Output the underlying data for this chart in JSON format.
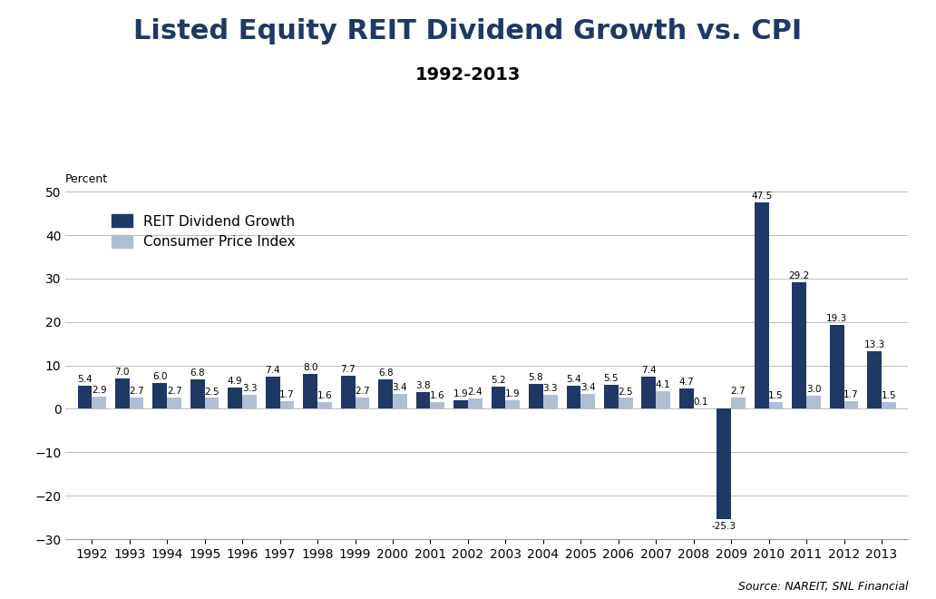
{
  "title": "Listed Equity REIT Dividend Growth vs. CPI",
  "subtitle": "1992-2013",
  "ylabel": "Percent",
  "source": "Source: NAREIT, SNL Financial",
  "ylim": [
    -30,
    50
  ],
  "yticks": [
    -30,
    -20,
    -10,
    0,
    10,
    20,
    30,
    40,
    50
  ],
  "years": [
    1992,
    1993,
    1994,
    1995,
    1996,
    1997,
    1998,
    1999,
    2000,
    2001,
    2002,
    2003,
    2004,
    2005,
    2006,
    2007,
    2008,
    2009,
    2010,
    2011,
    2012,
    2013
  ],
  "reit": [
    5.4,
    7.0,
    6.0,
    6.8,
    4.9,
    7.4,
    8.0,
    7.7,
    6.8,
    3.8,
    1.9,
    5.2,
    5.8,
    5.4,
    5.5,
    7.4,
    4.7,
    -25.3,
    47.5,
    29.2,
    19.3,
    13.3
  ],
  "cpi": [
    2.9,
    2.7,
    2.7,
    2.5,
    3.3,
    1.7,
    1.6,
    2.7,
    3.4,
    1.6,
    2.4,
    1.9,
    3.3,
    3.4,
    2.5,
    4.1,
    0.1,
    2.7,
    1.5,
    3.0,
    1.7,
    1.5
  ],
  "reit_color": "#1F3864",
  "cpi_color": "#B0BED4",
  "bar_width": 0.38,
  "title_fontsize": 22,
  "subtitle_fontsize": 14,
  "legend_fontsize": 11,
  "tick_fontsize": 10,
  "label_fontsize": 7.5,
  "background_color": "#FFFFFF",
  "grid_color": "#BBBBBB"
}
